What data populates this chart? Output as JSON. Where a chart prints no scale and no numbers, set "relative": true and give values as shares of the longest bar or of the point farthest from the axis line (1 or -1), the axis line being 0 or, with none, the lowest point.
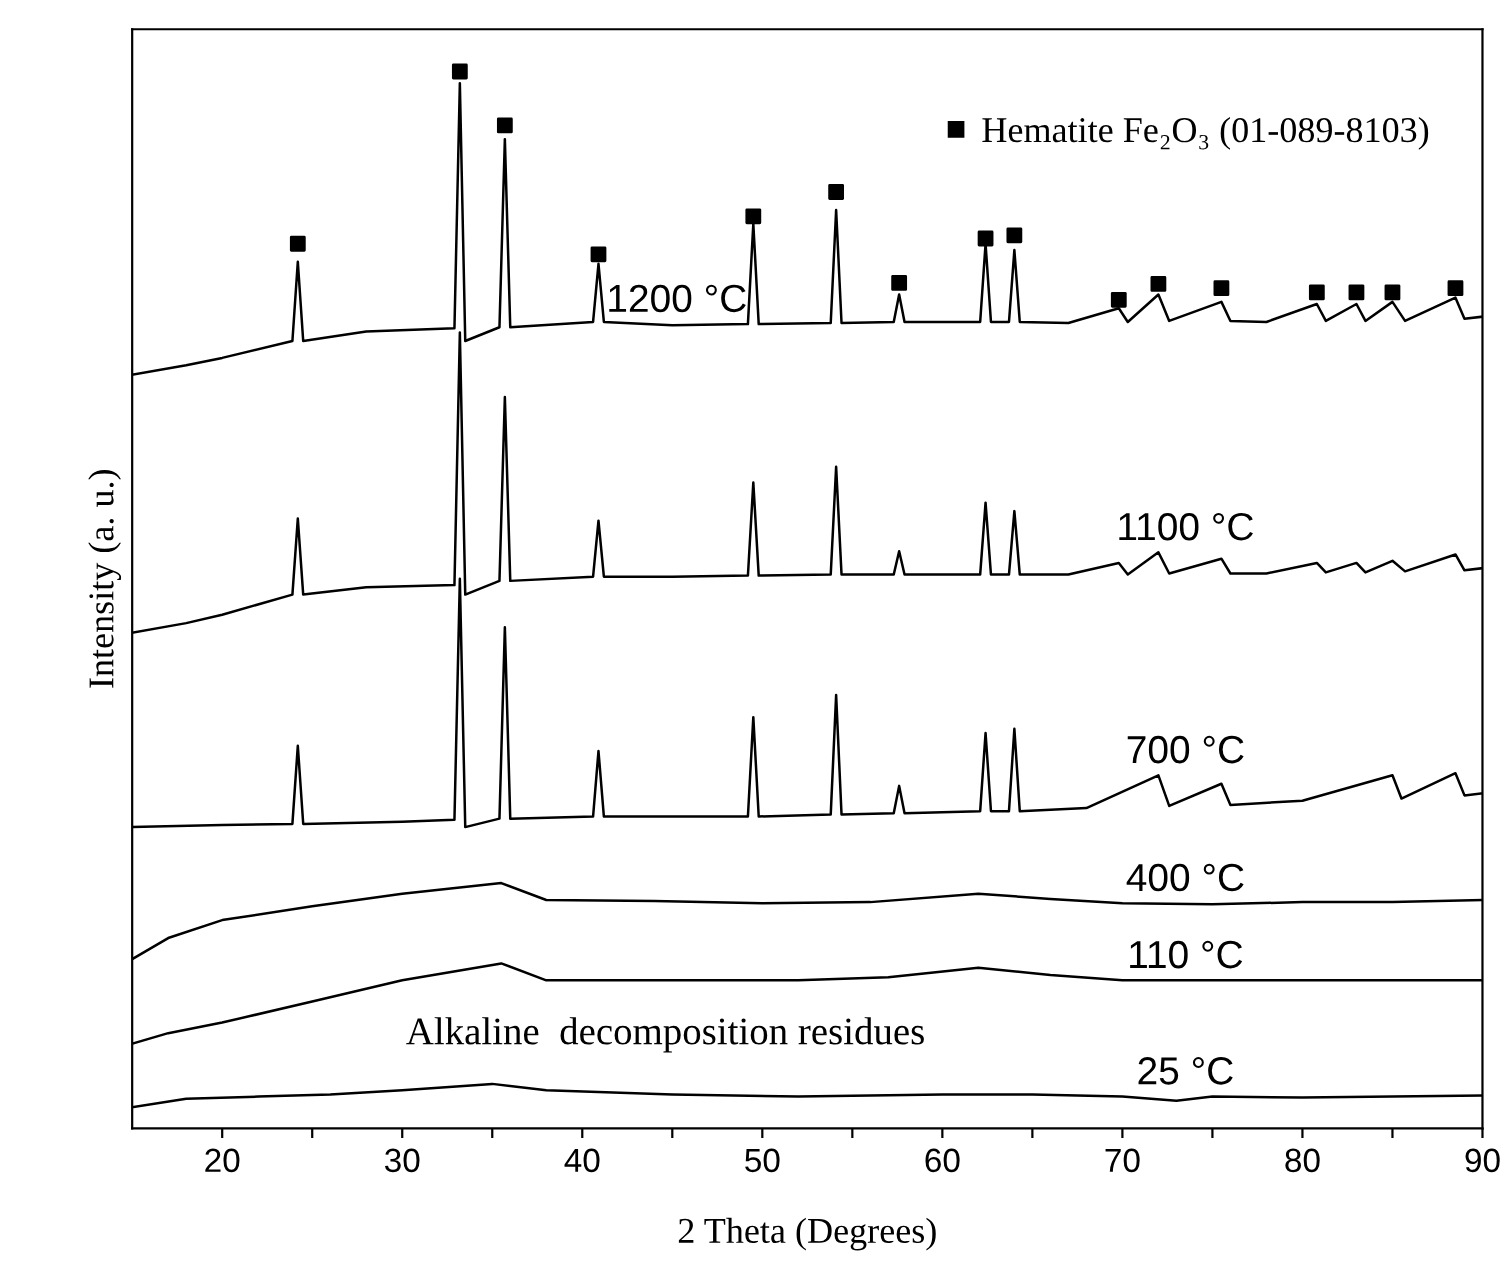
{
  "chart_data": {
    "type": "line",
    "xlabel": "2 Theta (Degrees)",
    "ylabel": "Intensity (a. u.)",
    "relative": true,
    "xlim": [
      15,
      90
    ],
    "xticks": [
      20,
      {
        "value": 25,
        "label": null
      },
      30,
      {
        "value": 35,
        "label": null
      },
      40,
      {
        "value": 45,
        "label": null
      },
      50,
      {
        "value": 55,
        "label": null
      },
      60,
      {
        "value": 65,
        "label": null
      },
      70,
      {
        "value": 75,
        "label": null
      },
      80,
      {
        "value": 85,
        "label": null
      },
      90
    ],
    "tick_labels": "x",
    "legend": "top right",
    "grid": false,
    "line_style": "solid",
    "annotations": [
      "Alkaline  decomposition residues"
    ],
    "series": [
      {
        "name": "1200 °C",
        "color": "#000000",
        "x": [
          15,
          18,
          20,
          23.9,
          24.2,
          24.5,
          28,
          32.9,
          33.2,
          33.5,
          35.4,
          35.7,
          36.0,
          40.6,
          40.9,
          41.2,
          45,
          49.2,
          49.5,
          49.8,
          53.8,
          54.1,
          54.4,
          57.3,
          57.6,
          57.9,
          62.1,
          62.4,
          62.7,
          63.7,
          64.0,
          64.3,
          67,
          69.8,
          70.3,
          72,
          72.6,
          75.5,
          76,
          78,
          80.8,
          81.3,
          83,
          83.5,
          85,
          85.7,
          88.5,
          89,
          90
        ],
        "values": [
          0.713,
          0.722,
          0.729,
          0.745,
          0.82,
          0.745,
          0.754,
          0.757,
          0.989,
          0.745,
          0.758,
          0.936,
          0.758,
          0.763,
          0.818,
          0.763,
          0.76,
          0.761,
          0.856,
          0.761,
          0.762,
          0.869,
          0.762,
          0.763,
          0.789,
          0.763,
          0.763,
          0.837,
          0.763,
          0.763,
          0.831,
          0.763,
          0.762,
          0.776,
          0.763,
          0.789,
          0.764,
          0.782,
          0.764,
          0.763,
          0.78,
          0.764,
          0.78,
          0.764,
          0.782,
          0.764,
          0.786,
          0.766,
          0.768
        ]
      },
      {
        "name": "1100 °C",
        "color": "#000000",
        "x": [
          15,
          18,
          20,
          23.9,
          24.2,
          24.5,
          28,
          32.9,
          33.2,
          33.5,
          35.4,
          35.7,
          36.0,
          40.6,
          40.9,
          41.2,
          45,
          49.2,
          49.5,
          49.8,
          53.8,
          54.1,
          54.4,
          57.3,
          57.6,
          57.9,
          62.1,
          62.4,
          62.7,
          63.7,
          64.0,
          64.3,
          67,
          69.8,
          70.3,
          72,
          72.6,
          75.5,
          76,
          78,
          80.8,
          81.3,
          83,
          83.5,
          85,
          85.7,
          88.5,
          89,
          90
        ],
        "values": [
          0.469,
          0.478,
          0.486,
          0.505,
          0.577,
          0.505,
          0.512,
          0.514,
          0.753,
          0.505,
          0.518,
          0.692,
          0.518,
          0.522,
          0.575,
          0.522,
          0.522,
          0.523,
          0.611,
          0.523,
          0.524,
          0.626,
          0.524,
          0.524,
          0.546,
          0.524,
          0.524,
          0.592,
          0.524,
          0.524,
          0.584,
          0.524,
          0.524,
          0.535,
          0.524,
          0.545,
          0.525,
          0.539,
          0.525,
          0.525,
          0.535,
          0.526,
          0.535,
          0.526,
          0.537,
          0.527,
          0.543,
          0.528,
          0.53
        ]
      },
      {
        "name": "700 °C",
        "color": "#000000",
        "x": [
          15,
          20,
          23.9,
          24.2,
          24.5,
          30,
          32.9,
          33.2,
          33.5,
          35.4,
          35.7,
          36.0,
          40.6,
          40.9,
          41.2,
          45,
          49.2,
          49.5,
          49.8,
          53.8,
          54.1,
          54.4,
          57.3,
          57.6,
          57.9,
          62.1,
          62.4,
          62.7,
          63.7,
          64.0,
          64.3,
          68,
          72,
          72.6,
          75.5,
          76,
          80,
          85,
          85.5,
          88.5,
          89,
          90
        ],
        "values": [
          0.285,
          0.287,
          0.288,
          0.362,
          0.288,
          0.29,
          0.292,
          0.52,
          0.285,
          0.293,
          0.474,
          0.293,
          0.295,
          0.357,
          0.295,
          0.295,
          0.295,
          0.389,
          0.295,
          0.297,
          0.41,
          0.297,
          0.298,
          0.324,
          0.298,
          0.3,
          0.374,
          0.3,
          0.3,
          0.378,
          0.3,
          0.303,
          0.334,
          0.305,
          0.326,
          0.306,
          0.31,
          0.334,
          0.312,
          0.336,
          0.315,
          0.317
        ]
      },
      {
        "name": "400 °C",
        "color": "#000000",
        "x": [
          15,
          17,
          20,
          25,
          30,
          35.5,
          38,
          44,
          50,
          56,
          62,
          66,
          70,
          75,
          80,
          85,
          90
        ],
        "values": [
          0.16,
          0.18,
          0.197,
          0.21,
          0.222,
          0.232,
          0.216,
          0.215,
          0.213,
          0.214,
          0.222,
          0.217,
          0.213,
          0.212,
          0.214,
          0.214,
          0.216
        ]
      },
      {
        "name": "110 °C",
        "color": "#000000",
        "x": [
          15,
          17,
          20,
          25,
          30,
          35.5,
          38,
          45,
          52,
          57,
          62,
          66,
          70,
          75,
          80,
          85,
          90
        ],
        "values": [
          0.08,
          0.09,
          0.1,
          0.12,
          0.14,
          0.156,
          0.14,
          0.14,
          0.14,
          0.143,
          0.152,
          0.145,
          0.14,
          0.14,
          0.14,
          0.14,
          0.14
        ]
      },
      {
        "name": "25 °C",
        "color": "#000000",
        "x": [
          15,
          18,
          22,
          26,
          30,
          35,
          38,
          45,
          52,
          60,
          65,
          70,
          73,
          75,
          80,
          85,
          90
        ],
        "values": [
          0.02,
          0.028,
          0.03,
          0.032,
          0.036,
          0.042,
          0.036,
          0.032,
          0.03,
          0.032,
          0.032,
          0.03,
          0.026,
          0.03,
          0.029,
          0.03,
          0.031
        ]
      },
      {
        "name": "Hematite Fe₂O₃ (01-089-8103)",
        "type": "scatter",
        "marker": "square",
        "color": "#000000",
        "x": [
          24.2,
          33.2,
          35.7,
          40.9,
          49.5,
          54.1,
          57.6,
          62.4,
          64.0,
          69.8,
          72,
          75.5,
          80.8,
          83,
          85,
          88.5
        ],
        "values": [
          0.837,
          1.0,
          0.949,
          0.827,
          0.863,
          0.886,
          0.8,
          0.842,
          0.845,
          0.784,
          0.799,
          0.795,
          0.791,
          0.791,
          0.791,
          0.795
        ]
      }
    ]
  }
}
